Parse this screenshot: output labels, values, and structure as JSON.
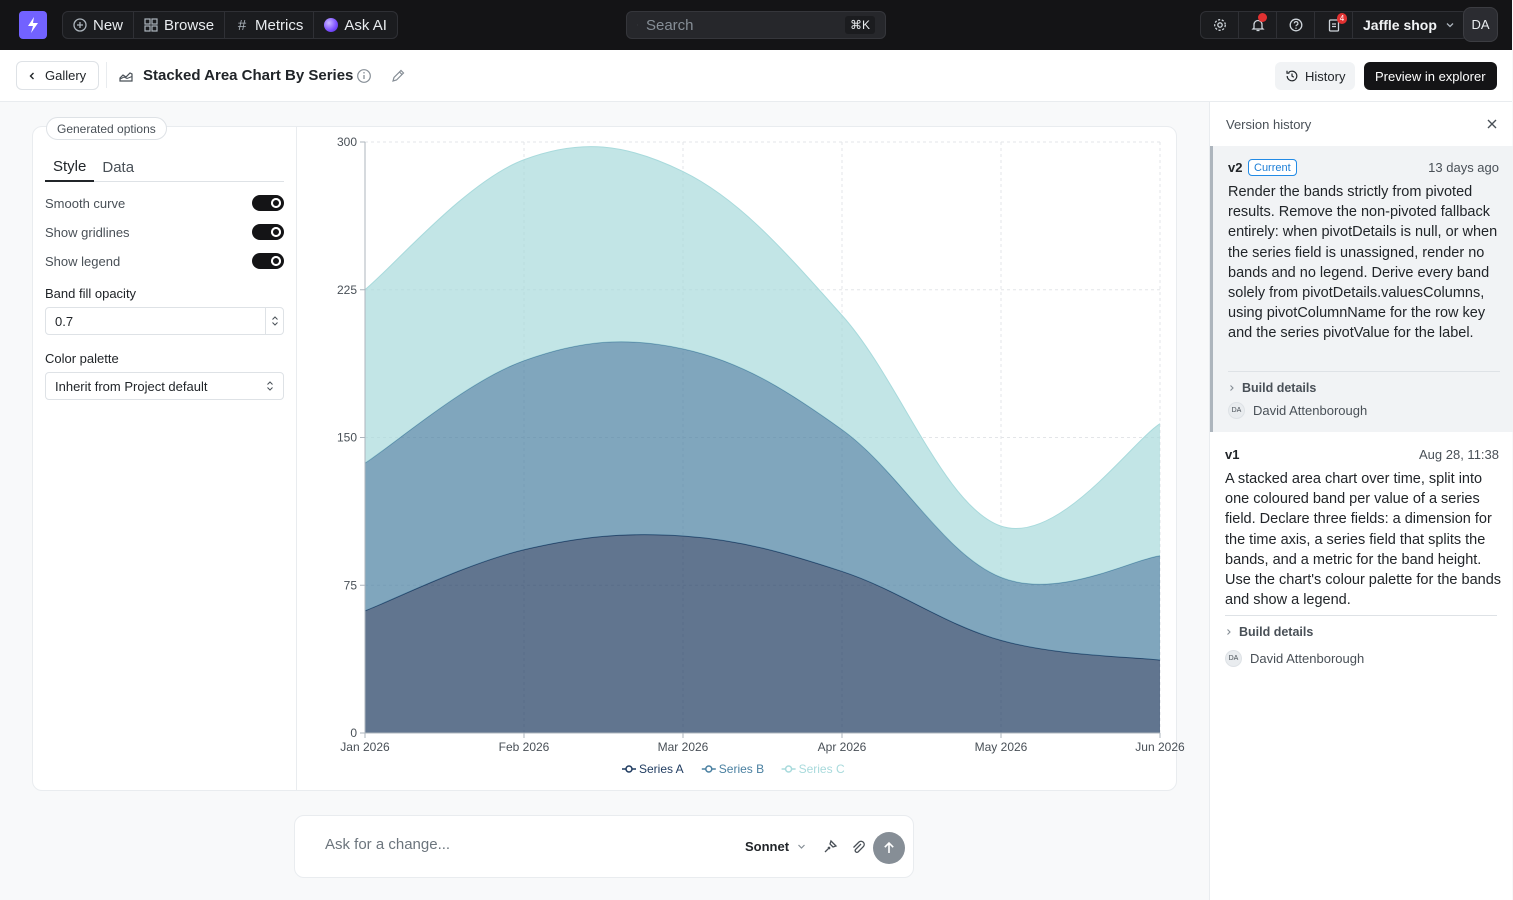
{
  "topnav": {
    "new_label": "New",
    "browse_label": "Browse",
    "metrics_label": "Metrics",
    "ask_ai_label": "Ask AI",
    "search_placeholder": "Search",
    "search_shortcut": "⌘K",
    "notification_badge": "4",
    "project_name": "Jaffle shop",
    "user_initials": "DA"
  },
  "header": {
    "back_label": "Gallery",
    "title": "Stacked Area Chart By Series",
    "history_label": "History",
    "preview_label": "Preview in explorer"
  },
  "options": {
    "badge_label": "Generated options",
    "tabs": [
      {
        "label": "Style",
        "active": true
      },
      {
        "label": "Data",
        "active": false
      }
    ],
    "toggles": [
      {
        "label": "Smooth curve",
        "on": true
      },
      {
        "label": "Show gridlines",
        "on": true
      },
      {
        "label": "Show legend",
        "on": true
      }
    ],
    "opacity_label": "Band fill opacity",
    "opacity_value": "0.7",
    "palette_label": "Color palette",
    "palette_value": "Inherit from Project default"
  },
  "chart_data": {
    "type": "area",
    "stacked": true,
    "smooth": true,
    "categories": [
      "Jan 2026",
      "Feb 2026",
      "Mar 2026",
      "Apr 2026",
      "May 2026",
      "Jun 2026"
    ],
    "y_ticks": [
      "0",
      "75",
      "150",
      "225",
      "300"
    ],
    "ylim": [
      0,
      300
    ],
    "grid": true,
    "legend": "bottom-center",
    "series": [
      {
        "name": "Series A",
        "color": "#1e3a5f",
        "values": [
          62,
          93,
          100,
          82,
          47,
          37
        ]
      },
      {
        "name": "Series B",
        "color": "#4a80a1",
        "values": [
          75,
          96,
          95,
          72,
          32,
          53
        ]
      },
      {
        "name": "Series C",
        "color": "#a8dadc",
        "values": [
          88,
          102,
          90,
          58,
          26,
          67
        ]
      }
    ]
  },
  "prompt": {
    "placeholder": "Ask for a change...",
    "model": "Sonnet"
  },
  "version_history": {
    "title": "Version history",
    "versions": [
      {
        "name": "v2",
        "badge": "Current",
        "date": "13 days ago",
        "description": "Render the bands strictly from pivoted results. Remove the non-pivoted fallback entirely: when pivotDetails is null, or when the series field is unassigned, render no bands and no legend. Derive every band solely from pivotDetails.valuesColumns, using pivotColumnName for the row key and the series pivotValue for the label.",
        "build_label": "Build details",
        "author_initials": "DA",
        "author": "David Attenborough"
      },
      {
        "name": "v1",
        "badge": "",
        "date": "Aug 28, 11:38",
        "description": "A stacked area chart over time, split into one coloured band per value of a series field. Declare three fields: a dimension for the time axis, a series field that splits the bands, and a metric for the band height. Use the chart's colour palette for the bands and show a legend.",
        "build_label": "Build details",
        "author_initials": "DA",
        "author": "David Attenborough"
      }
    ]
  }
}
